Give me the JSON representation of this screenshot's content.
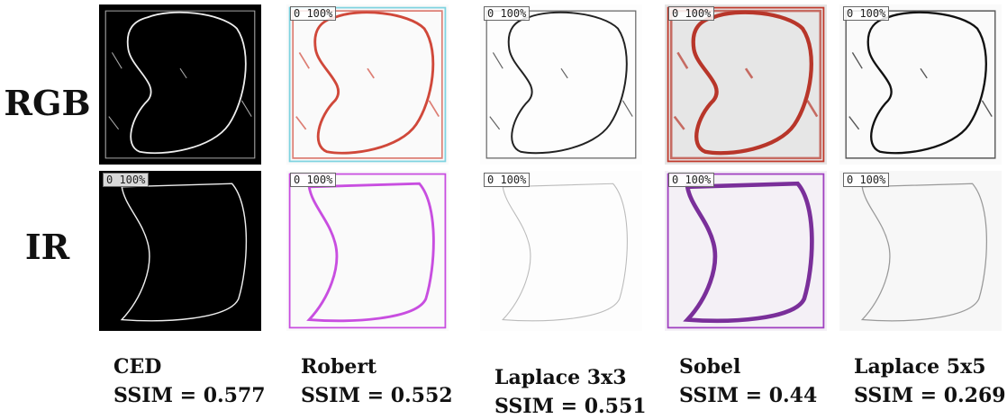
{
  "rows": [
    {
      "label": "RGB",
      "tags": [
        null,
        "0 100%",
        "0 100%",
        "0 100%",
        "0 100%"
      ]
    },
    {
      "label": "IR",
      "tags": [
        "0 100%",
        "0 100%",
        "0 100%",
        "0 100%",
        "0 100%"
      ]
    }
  ],
  "columns": [
    {
      "method": "CED",
      "metric": "SSIM = 0.577"
    },
    {
      "method": "Robert",
      "metric": "SSIM = 0.552"
    },
    {
      "method": "Laplace 3x3",
      "metric": "SSIM = 0.551"
    },
    {
      "method": "Sobel",
      "metric": "SSIM = 0.44"
    },
    {
      "method": "Laplace 5x5",
      "metric": "SSIM = 0.269"
    }
  ]
}
